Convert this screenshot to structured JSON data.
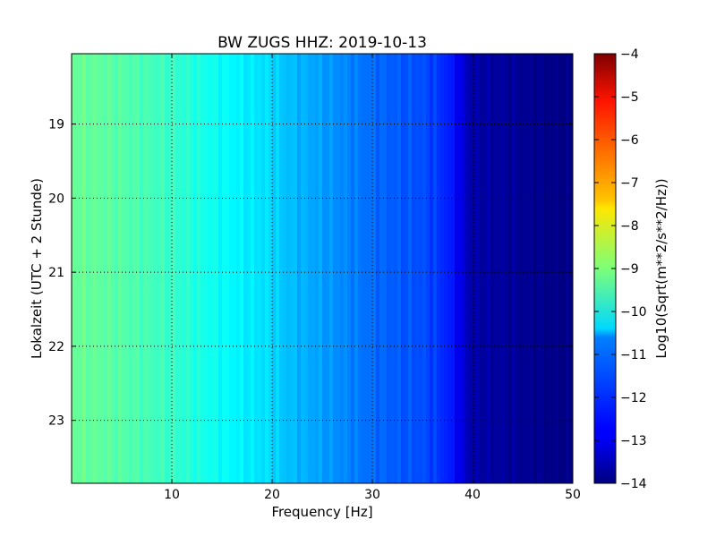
{
  "chart_data": {
    "type": "heatmap",
    "title": "BW ZUGS HHZ: 2019-10-13",
    "xlabel": "Frequency [Hz]",
    "ylabel": "Lokalzeit (UTC + 2 Stunde)",
    "xlim": [
      0,
      50
    ],
    "ylim": [
      18.05,
      23.85
    ],
    "y_inverted": true,
    "x_ticks": [
      "10",
      "20",
      "30",
      "40",
      "50"
    ],
    "x_tick_values": [
      10,
      20,
      30,
      40,
      50
    ],
    "y_ticks": [
      "19",
      "20",
      "21",
      "22",
      "23"
    ],
    "y_tick_values": [
      19,
      20,
      21,
      22,
      23
    ],
    "grid": true,
    "colormap": "jet",
    "colorbar": {
      "label": "Log10(Sqrt(m**2/s**2/Hz))",
      "range": [
        -14,
        -4
      ],
      "ticks": [
        "−4",
        "−5",
        "−6",
        "−7",
        "−8",
        "−9",
        "−10",
        "−11",
        "−12",
        "−13",
        "−14"
      ],
      "tick_values": [
        -4,
        -5,
        -6,
        -7,
        -8,
        -9,
        -10,
        -11,
        -12,
        -13,
        -14
      ]
    },
    "spectrum_profile": {
      "frequency_hz": [
        0,
        5,
        10,
        15,
        20,
        21,
        22,
        23,
        25,
        28,
        30,
        33,
        35,
        37,
        38,
        40,
        50
      ],
      "log10_amplitude": [
        -9.2,
        -9.4,
        -9.7,
        -10.2,
        -10.6,
        -10.8,
        -10.9,
        -11.0,
        -11.2,
        -11.5,
        -11.7,
        -11.9,
        -12.0,
        -12.3,
        -12.6,
        -13.6,
        -14.0
      ]
    }
  }
}
